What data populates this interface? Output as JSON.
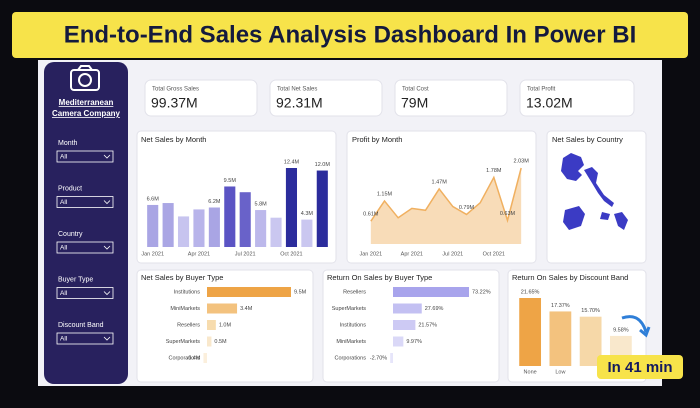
{
  "banner": "End-to-End Sales Analysis Dashboard In Power BI",
  "sidebar": {
    "company": [
      "Mediterranean",
      "Camera Company"
    ],
    "filters": [
      {
        "label": "Month",
        "value": "All"
      },
      {
        "label": "Product",
        "value": "All"
      },
      {
        "label": "Country",
        "value": "All"
      },
      {
        "label": "Buyer Type",
        "value": "All"
      },
      {
        "label": "Discount Band",
        "value": "All"
      }
    ]
  },
  "kpis": [
    {
      "label": "Total Gross Sales",
      "value": "99.37M"
    },
    {
      "label": "Total Net Sales",
      "value": "92.31M"
    },
    {
      "label": "Total Cost",
      "value": "79M"
    },
    {
      "label": "Total Profit",
      "value": "13.02M"
    }
  ],
  "badge": "In 41 min",
  "chart_data": [
    {
      "type": "bar",
      "title": "Net Sales by Month",
      "categories": [
        "Jan 2021",
        null,
        null,
        "Apr 2021",
        null,
        null,
        "Jul 2021",
        null,
        null,
        "Oct 2021",
        null,
        null
      ],
      "values": [
        6.6,
        6.9,
        4.8,
        5.9,
        6.2,
        9.5,
        8.6,
        5.8,
        4.6,
        12.4,
        4.3,
        12.0
      ],
      "value_labels": [
        "6.6M",
        null,
        null,
        null,
        "6.2M",
        "9.5M",
        null,
        "5.8M",
        null,
        "12.4M",
        "4.3M",
        "12.0M"
      ],
      "colors": [
        "#a9a5e4",
        "#aaa6e4",
        "#c7c4ef",
        "#b8b4ea",
        "#a9a5e4",
        "#5b54c4",
        "#6962c9",
        "#bcb8eb",
        "#cac7f0",
        "#2b2c9c",
        "#cac7f0",
        "#2b2c9c"
      ]
    },
    {
      "type": "area",
      "title": "Profit by Month",
      "color": "#f0b060",
      "fill": "#f8dcb8",
      "categories": [
        "Jan 2021",
        null,
        null,
        "Apr 2021",
        null,
        null,
        "Jul 2021",
        null,
        null,
        "Oct 2021",
        null,
        null
      ],
      "values": [
        0.61,
        1.15,
        0.7,
        0.95,
        0.9,
        1.47,
        1.0,
        0.79,
        1.1,
        1.78,
        0.63,
        2.03
      ],
      "value_labels": [
        "0.61M",
        "1.15M",
        null,
        null,
        null,
        "1.47M",
        null,
        "0.79M",
        null,
        "1.78M",
        "0.63M",
        "2.03M"
      ]
    },
    {
      "type": "map",
      "title": "Net Sales by Country",
      "color": "#3b3bc4"
    },
    {
      "type": "bar",
      "orientation": "horizontal",
      "title": "Net Sales by Buyer Type",
      "categories": [
        "Institutions",
        "MiniMarkets",
        "Resellers",
        "SuperMarkets",
        "Corporations"
      ],
      "values": [
        9.5,
        3.4,
        1.0,
        0.5,
        -0.4
      ],
      "value_labels": [
        "9.5M",
        "3.4M",
        "1.0M",
        "0.5M",
        "-0.4M"
      ],
      "colors": [
        "#eea446",
        "#f3c27e",
        "#f7dcae",
        "#f9e8cc",
        "#fbefdc"
      ]
    },
    {
      "type": "bar",
      "orientation": "horizontal",
      "title": "Return On Sales by Buyer Type",
      "categories": [
        "Resellers",
        "SuperMarkets",
        "Institutions",
        "MiniMarkets",
        "Corporations"
      ],
      "values": [
        73.22,
        27.69,
        21.57,
        9.97,
        -2.7
      ],
      "value_labels": [
        "73.22%",
        "27.69%",
        "21.57%",
        "9.97%",
        "-2.70%"
      ],
      "colors": [
        "#a8a4ec",
        "#c3c0f2",
        "#cdcaf4",
        "#dad8f7",
        "#e6e5fa"
      ]
    },
    {
      "type": "bar",
      "title": "Return On Sales by Discount Band",
      "categories": [
        "None",
        "Low",
        null,
        null
      ],
      "values": [
        21.65,
        17.37,
        15.7,
        9.58
      ],
      "value_labels": [
        "21.65%",
        "17.37%",
        "15.70%",
        "9.58%"
      ],
      "colors": [
        "#eea446",
        "#f3c27e",
        "#f6d8a8",
        "#f9e8cc"
      ]
    }
  ]
}
